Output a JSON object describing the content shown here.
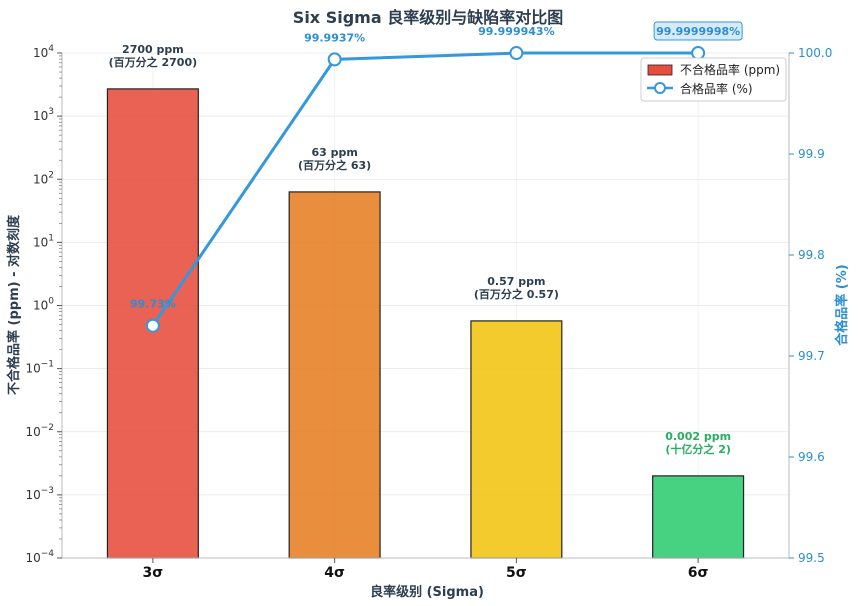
{
  "chart_data": {
    "type": "bar",
    "title": "Six Sigma 良率级别与缺陷率对比图",
    "xlabel": "良率级别 (Sigma)",
    "ylabel": "不合格品率 (ppm) - 对数刻度",
    "ylabel_right": "合格品率 (%)",
    "categories": [
      "3σ",
      "4σ",
      "5σ",
      "6σ"
    ],
    "y_scale": "log",
    "ylim": [
      0.0001,
      10000
    ],
    "ylim_right": [
      99.5,
      100.0
    ],
    "y_ticks": [
      {
        "base": "10",
        "exp": "−4"
      },
      {
        "base": "10",
        "exp": "−3"
      },
      {
        "base": "10",
        "exp": "−2"
      },
      {
        "base": "10",
        "exp": "−1"
      },
      {
        "base": "10",
        "exp": "0"
      },
      {
        "base": "10",
        "exp": "1"
      },
      {
        "base": "10",
        "exp": "2"
      },
      {
        "base": "10",
        "exp": "3"
      },
      {
        "base": "10",
        "exp": "4"
      }
    ],
    "y_ticks_right": [
      "99.5",
      "99.6",
      "99.7",
      "99.8",
      "99.9",
      "100.0"
    ],
    "series": [
      {
        "name": "不合格品率 (ppm)",
        "type": "bar",
        "axis": "left",
        "values": [
          2700,
          63,
          0.57,
          0.002
        ],
        "colors": [
          "#e74c3c",
          "#e67e22",
          "#f1c40f",
          "#2ecc71"
        ],
        "labels": [
          [
            "2700 ppm",
            "(百万分之 2700)"
          ],
          [
            "63 ppm",
            "(百万分之 63)"
          ],
          [
            "0.57 ppm",
            "(百万分之 0.57)"
          ],
          [
            "0.002 ppm",
            "(十亿分之 2)"
          ]
        ]
      },
      {
        "name": "合格品率 (%)",
        "type": "line",
        "axis": "right",
        "values": [
          99.73,
          99.9937,
          99.999943,
          99.9999998
        ],
        "color": "#3498db",
        "labels": [
          "99.73%",
          "99.9937%",
          "99.999943%",
          "99.9999998%"
        ]
      }
    ],
    "legend": "top-right",
    "grid": true
  }
}
